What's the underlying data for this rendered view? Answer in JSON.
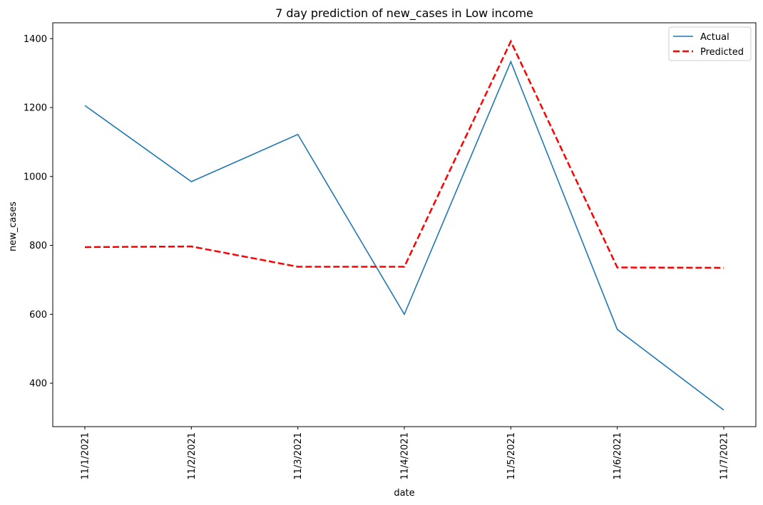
{
  "chart_data": {
    "type": "line",
    "title": "7 day prediction of new_cases in Low income",
    "xlabel": "date",
    "ylabel": "new_cases",
    "categories": [
      "11/1/2021",
      "11/2/2021",
      "11/3/2021",
      "11/4/2021",
      "11/5/2021",
      "11/6/2021",
      "11/7/2021"
    ],
    "series": [
      {
        "name": "Actual",
        "values": [
          1206,
          985,
          1122,
          600,
          1333,
          556,
          322
        ],
        "color": "#1f77b4",
        "style": "solid"
      },
      {
        "name": "Predicted",
        "values": [
          795,
          797,
          738,
          738,
          1392,
          736,
          735
        ],
        "color": "#ff0000",
        "style": "dashed"
      }
    ],
    "ylim": [
      274,
      1446
    ],
    "yticks": [
      400,
      600,
      800,
      1000,
      1200,
      1400
    ],
    "grid": false,
    "legend_position": "top-right"
  }
}
